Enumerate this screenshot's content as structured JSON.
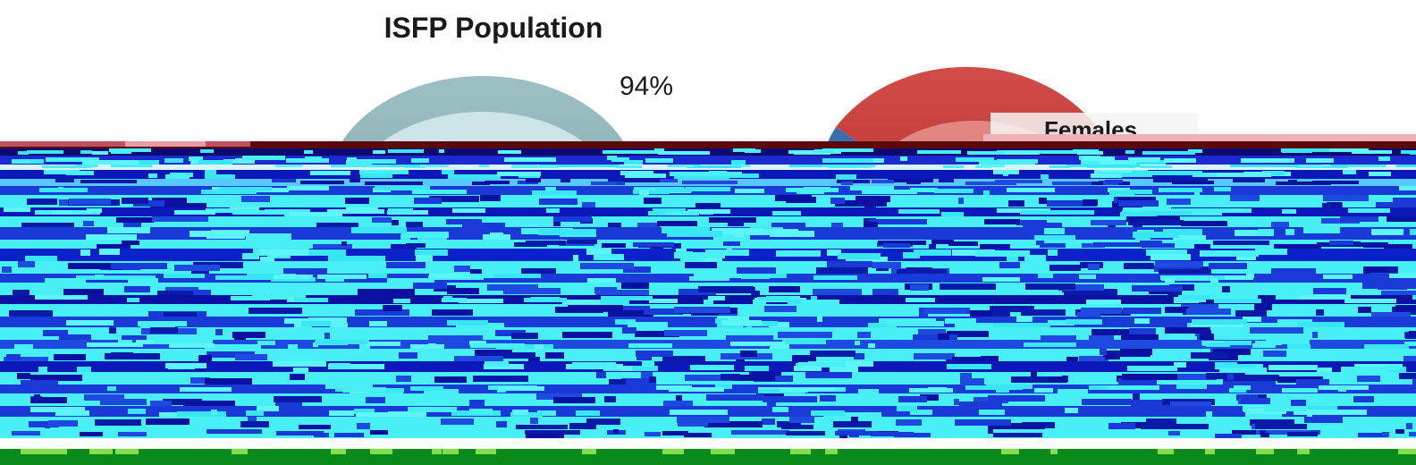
{
  "chart_data": {
    "type": "pie",
    "title": "ISFP Population",
    "charts": [
      {
        "slices": [
          {
            "label": "",
            "value": 94,
            "display": "94%",
            "color": "#8fb3b6"
          }
        ]
      },
      {
        "slices": [
          {
            "label": "Females",
            "value": null,
            "color": "#c9413d"
          },
          {
            "label": "",
            "value": null,
            "color": "#3a6fae"
          }
        ]
      }
    ],
    "legend": {
      "entries": [
        "Females"
      ],
      "placement": "right"
    },
    "glitch_colors": [
      "#5a0a0a",
      "#e89aa6",
      "#0a0aa0",
      "#1a4adf",
      "#4cf0f6",
      "#2a9a2a",
      "#7fe04a"
    ]
  }
}
